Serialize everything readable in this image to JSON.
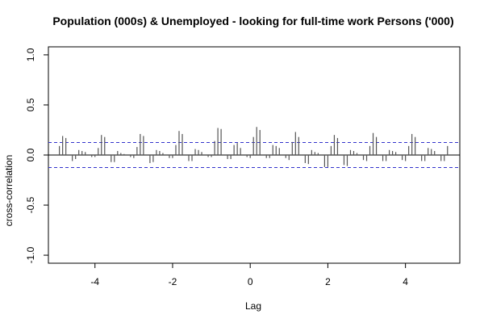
{
  "chart_data": {
    "type": "ccf",
    "title": "Population (000s) & Unemployed - looking for full-time work Persons ('000)",
    "xlabel": "Lag",
    "ylabel": "cross-correlation",
    "xlim": [
      -5.2,
      5.4
    ],
    "ylim": [
      -1.08,
      1.08
    ],
    "x_ticks": [
      -4,
      -2,
      0,
      2,
      4
    ],
    "x_tick_labels": [
      "-4",
      "-2",
      "0",
      "2",
      "4"
    ],
    "y_ticks": [
      -1.0,
      -0.5,
      0.0,
      0.5,
      1.0
    ],
    "y_tick_labels": [
      "-1.0",
      "-0.5",
      "0.0",
      "0.5",
      "1.0"
    ],
    "confidence_limit": 0.125,
    "confidence_color": "#3333cc",
    "bar_color": "#555555",
    "lag_step": 0.0833333,
    "lag_start": -5,
    "values": [
      0.0,
      0.09,
      0.19,
      0.17,
      0.0,
      -0.06,
      -0.04,
      0.05,
      0.04,
      0.03,
      0.0,
      -0.02,
      -0.02,
      0.07,
      0.2,
      0.18,
      0.0,
      -0.07,
      -0.07,
      0.04,
      0.02,
      0.01,
      0.0,
      -0.02,
      -0.03,
      0.08,
      0.21,
      0.19,
      0.0,
      -0.08,
      -0.07,
      0.05,
      0.04,
      0.02,
      0.0,
      -0.03,
      -0.03,
      0.1,
      0.24,
      0.21,
      0.0,
      -0.06,
      -0.06,
      0.06,
      0.05,
      0.03,
      0.0,
      -0.02,
      -0.02,
      0.14,
      0.27,
      0.26,
      0.0,
      -0.04,
      -0.04,
      0.1,
      0.12,
      0.07,
      0.0,
      -0.02,
      -0.03,
      0.18,
      0.28,
      0.25,
      0.0,
      -0.03,
      -0.03,
      0.1,
      0.09,
      0.07,
      0.0,
      -0.03,
      -0.05,
      0.13,
      0.23,
      0.18,
      0.0,
      -0.08,
      -0.09,
      0.05,
      0.03,
      0.02,
      0.0,
      -0.12,
      -0.12,
      0.09,
      0.2,
      0.17,
      0.0,
      -0.1,
      -0.11,
      0.05,
      0.04,
      0.02,
      0.0,
      -0.05,
      -0.06,
      0.09,
      0.22,
      0.18,
      0.0,
      -0.06,
      -0.06,
      0.05,
      0.04,
      0.03,
      0.0,
      -0.05,
      -0.06,
      0.09,
      0.21,
      0.18,
      0.0,
      -0.06,
      -0.06,
      0.07,
      0.06,
      0.04,
      0.0,
      -0.06,
      -0.06,
      0.09
    ]
  }
}
